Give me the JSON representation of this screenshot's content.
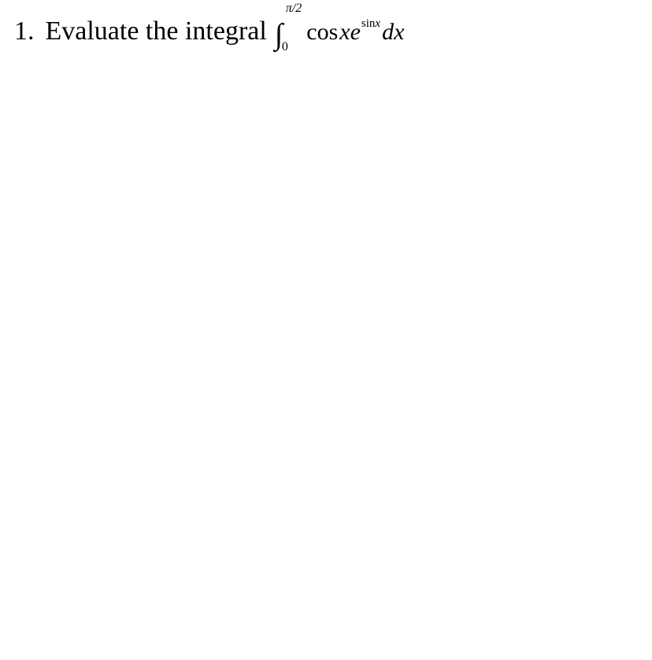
{
  "problem": {
    "number": "1.",
    "text": "Evaluate the integral",
    "integral": {
      "upper_pi": "π",
      "upper_slash": "/2",
      "lower": "0",
      "cos": "cos",
      "x1": "x",
      "e": "e",
      "exp_sin": "sin",
      "exp_x": "x",
      "dx": "dx"
    }
  },
  "style": {
    "background": "#ffffff",
    "text_color": "#000000",
    "font_family": "Times New Roman",
    "main_fontsize": 34,
    "integrand_fontsize": 30,
    "limit_fontsize": 16,
    "exponent_fontsize": 15
  }
}
